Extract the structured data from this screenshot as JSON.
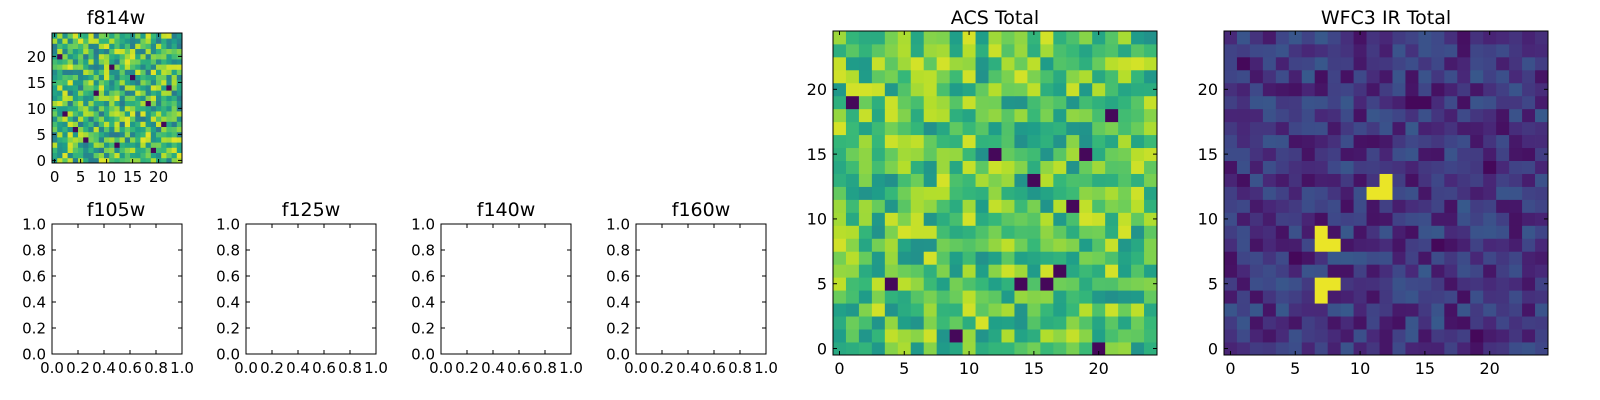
{
  "chart_data": [
    {
      "type": "heatmap",
      "title": "f814w",
      "xlim": [
        -0.5,
        24.5
      ],
      "ylim": [
        -0.5,
        24.5
      ],
      "xticks": [
        0,
        5,
        10,
        15,
        20
      ],
      "yticks": [
        0,
        5,
        10,
        15,
        20
      ],
      "colormap": "viridis",
      "vmin": 0,
      "vmax": 1,
      "grid": false,
      "note_values": "25x25 pixel image; per-pixel values are not legible at this resolution",
      "bright_pixels": [],
      "dark_pixels": [
        [
          1,
          20
        ],
        [
          12,
          3
        ],
        [
          15,
          16
        ],
        [
          18,
          11
        ],
        [
          4,
          6
        ],
        [
          21,
          7
        ],
        [
          8,
          13
        ],
        [
          19,
          2
        ],
        [
          6,
          4
        ],
        [
          11,
          18
        ],
        [
          22,
          14
        ],
        [
          2,
          9
        ]
      ]
    },
    {
      "type": "heatmap",
      "title": "f105w",
      "xlim": [
        0,
        1
      ],
      "ylim": [
        0,
        1
      ],
      "xticks": [
        0.0,
        0.2,
        0.4,
        0.6,
        0.8,
        1.0
      ],
      "yticks": [
        0.0,
        0.2,
        0.4,
        0.6,
        0.8,
        1.0
      ],
      "values": []
    },
    {
      "type": "heatmap",
      "title": "f125w",
      "xlim": [
        0,
        1
      ],
      "ylim": [
        0,
        1
      ],
      "xticks": [
        0.0,
        0.2,
        0.4,
        0.6,
        0.8,
        1.0
      ],
      "yticks": [
        0.0,
        0.2,
        0.4,
        0.6,
        0.8,
        1.0
      ],
      "values": []
    },
    {
      "type": "heatmap",
      "title": "f140w",
      "xlim": [
        0,
        1
      ],
      "ylim": [
        0,
        1
      ],
      "xticks": [
        0.0,
        0.2,
        0.4,
        0.6,
        0.8,
        1.0
      ],
      "yticks": [
        0.0,
        0.2,
        0.4,
        0.6,
        0.8,
        1.0
      ],
      "values": []
    },
    {
      "type": "heatmap",
      "title": "f160w",
      "xlim": [
        0,
        1
      ],
      "ylim": [
        0,
        1
      ],
      "xticks": [
        0.0,
        0.2,
        0.4,
        0.6,
        0.8,
        1.0
      ],
      "yticks": [
        0.0,
        0.2,
        0.4,
        0.6,
        0.8,
        1.0
      ],
      "values": []
    },
    {
      "type": "heatmap",
      "title": "ACS Total",
      "xlim": [
        -0.5,
        24.5
      ],
      "ylim": [
        -0.5,
        24.5
      ],
      "xticks": [
        0,
        5,
        10,
        15,
        20
      ],
      "yticks": [
        0,
        5,
        10,
        15,
        20
      ],
      "colormap": "viridis",
      "vmin": 0,
      "vmax": 1,
      "grid": false,
      "note_values": "25x25 pixel image; mostly mid-to-high values with scattered minima",
      "bright_pixels": [],
      "dark_pixels": [
        [
          1,
          19
        ],
        [
          12,
          15
        ],
        [
          15,
          13
        ],
        [
          19,
          15
        ],
        [
          18,
          11
        ],
        [
          16,
          5
        ],
        [
          4,
          5
        ],
        [
          20,
          0
        ],
        [
          21,
          18
        ],
        [
          9,
          1
        ],
        [
          14,
          5
        ],
        [
          17,
          6
        ]
      ]
    },
    {
      "type": "heatmap",
      "title": "WFC3 IR Total",
      "xlim": [
        -0.5,
        24.5
      ],
      "ylim": [
        -0.5,
        24.5
      ],
      "xticks": [
        0,
        5,
        10,
        15,
        20
      ],
      "yticks": [
        0,
        5,
        10,
        15,
        20
      ],
      "colormap": "viridis",
      "vmin": 0,
      "vmax": 1,
      "grid": false,
      "note_values": "25x25 pixel image; low background with bright sources",
      "bright_pixels": [
        [
          7,
          9
        ],
        [
          8,
          8
        ],
        [
          7,
          8
        ],
        [
          7,
          5
        ],
        [
          7,
          4
        ],
        [
          8,
          5
        ],
        [
          12,
          12
        ],
        [
          12,
          13
        ],
        [
          11,
          12
        ]
      ],
      "dark_pixels": [
        [
          14,
          19
        ],
        [
          15,
          19
        ],
        [
          20,
          14
        ],
        [
          5,
          7
        ],
        [
          1,
          22
        ],
        [
          19,
          1
        ],
        [
          16,
          8
        ]
      ]
    }
  ],
  "colors": {
    "viridis": [
      "#440154",
      "#482878",
      "#3e4989",
      "#31688e",
      "#26828e",
      "#1f9e89",
      "#35b779",
      "#6ece58",
      "#b5de2b",
      "#fde725"
    ]
  }
}
